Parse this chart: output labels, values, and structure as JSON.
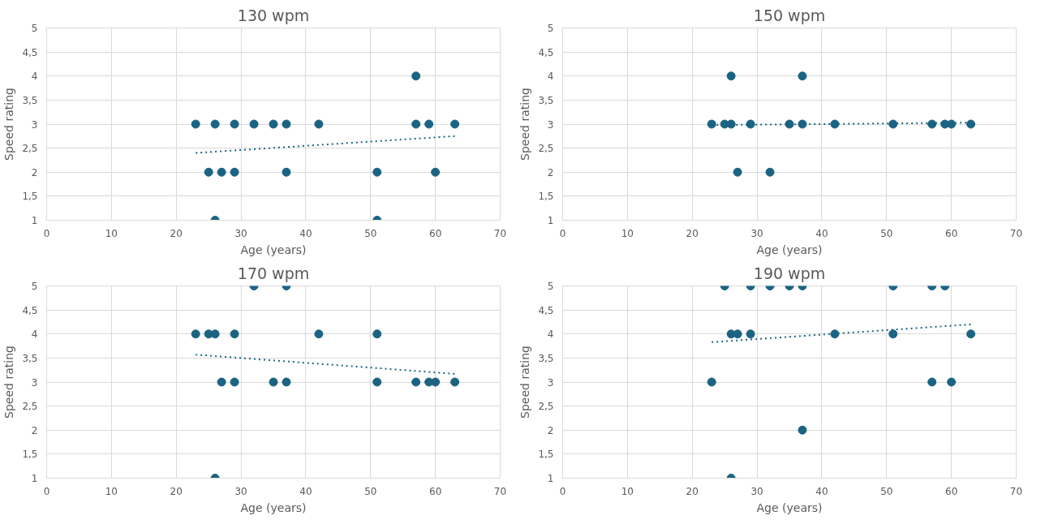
{
  "chart_data": [
    {
      "type": "scatter",
      "title": "130 wpm",
      "xlabel": "Age (years)",
      "ylabel": "Speed rating",
      "xlim": [
        0,
        70
      ],
      "ylim": [
        1,
        5
      ],
      "xticks": [
        0,
        10,
        20,
        30,
        40,
        50,
        60,
        70
      ],
      "yticks": [
        1,
        {
          "value": 1.5,
          "label": "1,5"
        },
        2,
        {
          "value": 2.5,
          "label": "2,5"
        },
        3,
        {
          "value": 3.5,
          "label": "3,5"
        },
        4,
        {
          "value": 4.5,
          "label": "4,5"
        },
        5
      ],
      "grid": true,
      "marker": "circle",
      "series": [
        {
          "color": "#1b6382",
          "x": [
            23,
            26,
            29,
            32,
            35,
            37,
            42,
            57,
            59,
            63,
            57,
            25,
            27,
            29,
            37,
            51,
            60,
            26,
            51
          ],
          "values": [
            3,
            3,
            3,
            3,
            3,
            3,
            3,
            3,
            3,
            3,
            4,
            2,
            2,
            2,
            2,
            2,
            2,
            1,
            1
          ]
        },
        {
          "type": "line",
          "marker": "none",
          "line_style": "dotted",
          "color": "#1b6382",
          "x": [
            23,
            63
          ],
          "values": [
            2.4,
            2.75
          ]
        }
      ]
    },
    {
      "type": "scatter",
      "title": "150 wpm",
      "xlabel": "Age (years)",
      "ylabel": "Speed rating",
      "xlim": [
        0,
        70
      ],
      "ylim": [
        1,
        5
      ],
      "xticks": [
        0,
        10,
        20,
        30,
        40,
        50,
        60,
        70
      ],
      "yticks": [
        1,
        {
          "value": 1.5,
          "label": "1,5"
        },
        2,
        {
          "value": 2.5,
          "label": "2,5"
        },
        3,
        {
          "value": 3.5,
          "label": "3,5"
        },
        4,
        {
          "value": 4.5,
          "label": "4,5"
        },
        5
      ],
      "grid": true,
      "marker": "circle",
      "series": [
        {
          "color": "#1b6382",
          "x": [
            26,
            37,
            23,
            25,
            26,
            29,
            35,
            37,
            42,
            51,
            57,
            59,
            60,
            63,
            27,
            32
          ],
          "values": [
            4,
            4,
            3,
            3,
            3,
            3,
            3,
            3,
            3,
            3,
            3,
            3,
            3,
            3,
            2,
            2
          ]
        },
        {
          "type": "line",
          "marker": "none",
          "line_style": "dotted",
          "color": "#1b6382",
          "x": [
            23,
            63
          ],
          "values": [
            2.98,
            3.03
          ]
        }
      ]
    },
    {
      "type": "scatter",
      "title": "170 wpm",
      "xlabel": "Age (years)",
      "ylabel": "Speed rating",
      "xlim": [
        0,
        70
      ],
      "ylim": [
        1,
        5
      ],
      "xticks": [
        0,
        10,
        20,
        30,
        40,
        50,
        60,
        70
      ],
      "yticks": [
        1,
        {
          "value": 1.5,
          "label": "1,5"
        },
        2,
        {
          "value": 2.5,
          "label": "2,5"
        },
        3,
        {
          "value": 3.5,
          "label": "3,5"
        },
        4,
        {
          "value": 4.5,
          "label": "4,5"
        },
        5
      ],
      "grid": true,
      "marker": "circle",
      "series": [
        {
          "color": "#1b6382",
          "x": [
            32,
            37,
            23,
            25,
            26,
            29,
            42,
            51,
            27,
            29,
            35,
            37,
            51,
            57,
            59,
            60,
            63,
            26
          ],
          "values": [
            5,
            5,
            4,
            4,
            4,
            4,
            4,
            4,
            3,
            3,
            3,
            3,
            3,
            3,
            3,
            3,
            3,
            1
          ]
        },
        {
          "type": "line",
          "marker": "none",
          "line_style": "dotted",
          "color": "#1b6382",
          "x": [
            23,
            63
          ],
          "values": [
            3.57,
            3.17
          ]
        }
      ]
    },
    {
      "type": "scatter",
      "title": "190 wpm",
      "xlabel": "Age (years)",
      "ylabel": "Speed rating",
      "xlim": [
        0,
        70
      ],
      "ylim": [
        1,
        5
      ],
      "xticks": [
        0,
        10,
        20,
        30,
        40,
        50,
        60,
        70
      ],
      "yticks": [
        1,
        {
          "value": 1.5,
          "label": "1,5"
        },
        2,
        {
          "value": 2.5,
          "label": "2,5"
        },
        3,
        {
          "value": 3.5,
          "label": "3,5"
        },
        4,
        {
          "value": 4.5,
          "label": "4,5"
        },
        5
      ],
      "grid": true,
      "marker": "circle",
      "series": [
        {
          "color": "#1b6382",
          "x": [
            25,
            29,
            32,
            35,
            37,
            51,
            57,
            59,
            26,
            27,
            29,
            42,
            51,
            63,
            23,
            57,
            60,
            37,
            26
          ],
          "values": [
            5,
            5,
            5,
            5,
            5,
            5,
            5,
            5,
            4,
            4,
            4,
            4,
            4,
            4,
            3,
            3,
            3,
            2,
            1
          ]
        },
        {
          "type": "line",
          "marker": "none",
          "line_style": "dotted",
          "color": "#1b6382",
          "x": [
            23,
            63
          ],
          "values": [
            3.83,
            4.2
          ]
        }
      ]
    }
  ]
}
